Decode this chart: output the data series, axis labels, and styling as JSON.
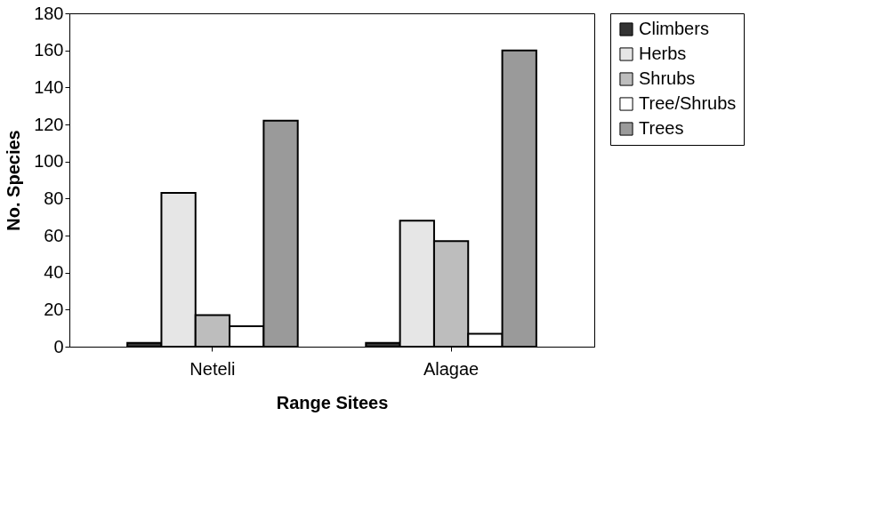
{
  "chart_data": {
    "type": "bar",
    "xlabel": "Range Sitees",
    "ylabel": "No. Species",
    "categories": [
      "Neteli",
      "Alagae"
    ],
    "series": [
      {
        "name": "Climbers",
        "color": "#333333",
        "values": [
          2,
          2
        ]
      },
      {
        "name": "Herbs",
        "color": "#e6e6e6",
        "values": [
          83,
          68
        ]
      },
      {
        "name": "Shrubs",
        "color": "#bdbdbd",
        "values": [
          17,
          57
        ]
      },
      {
        "name": "Tree/Shrubs",
        "color": "#ffffff",
        "values": [
          11,
          7
        ]
      },
      {
        "name": "Trees",
        "color": "#9a9a9a",
        "values": [
          122,
          160
        ]
      }
    ],
    "ylim": [
      0,
      180
    ],
    "yticks": [
      0,
      20,
      40,
      60,
      80,
      100,
      120,
      140,
      160,
      180
    ],
    "grid": false,
    "legend": "right"
  }
}
